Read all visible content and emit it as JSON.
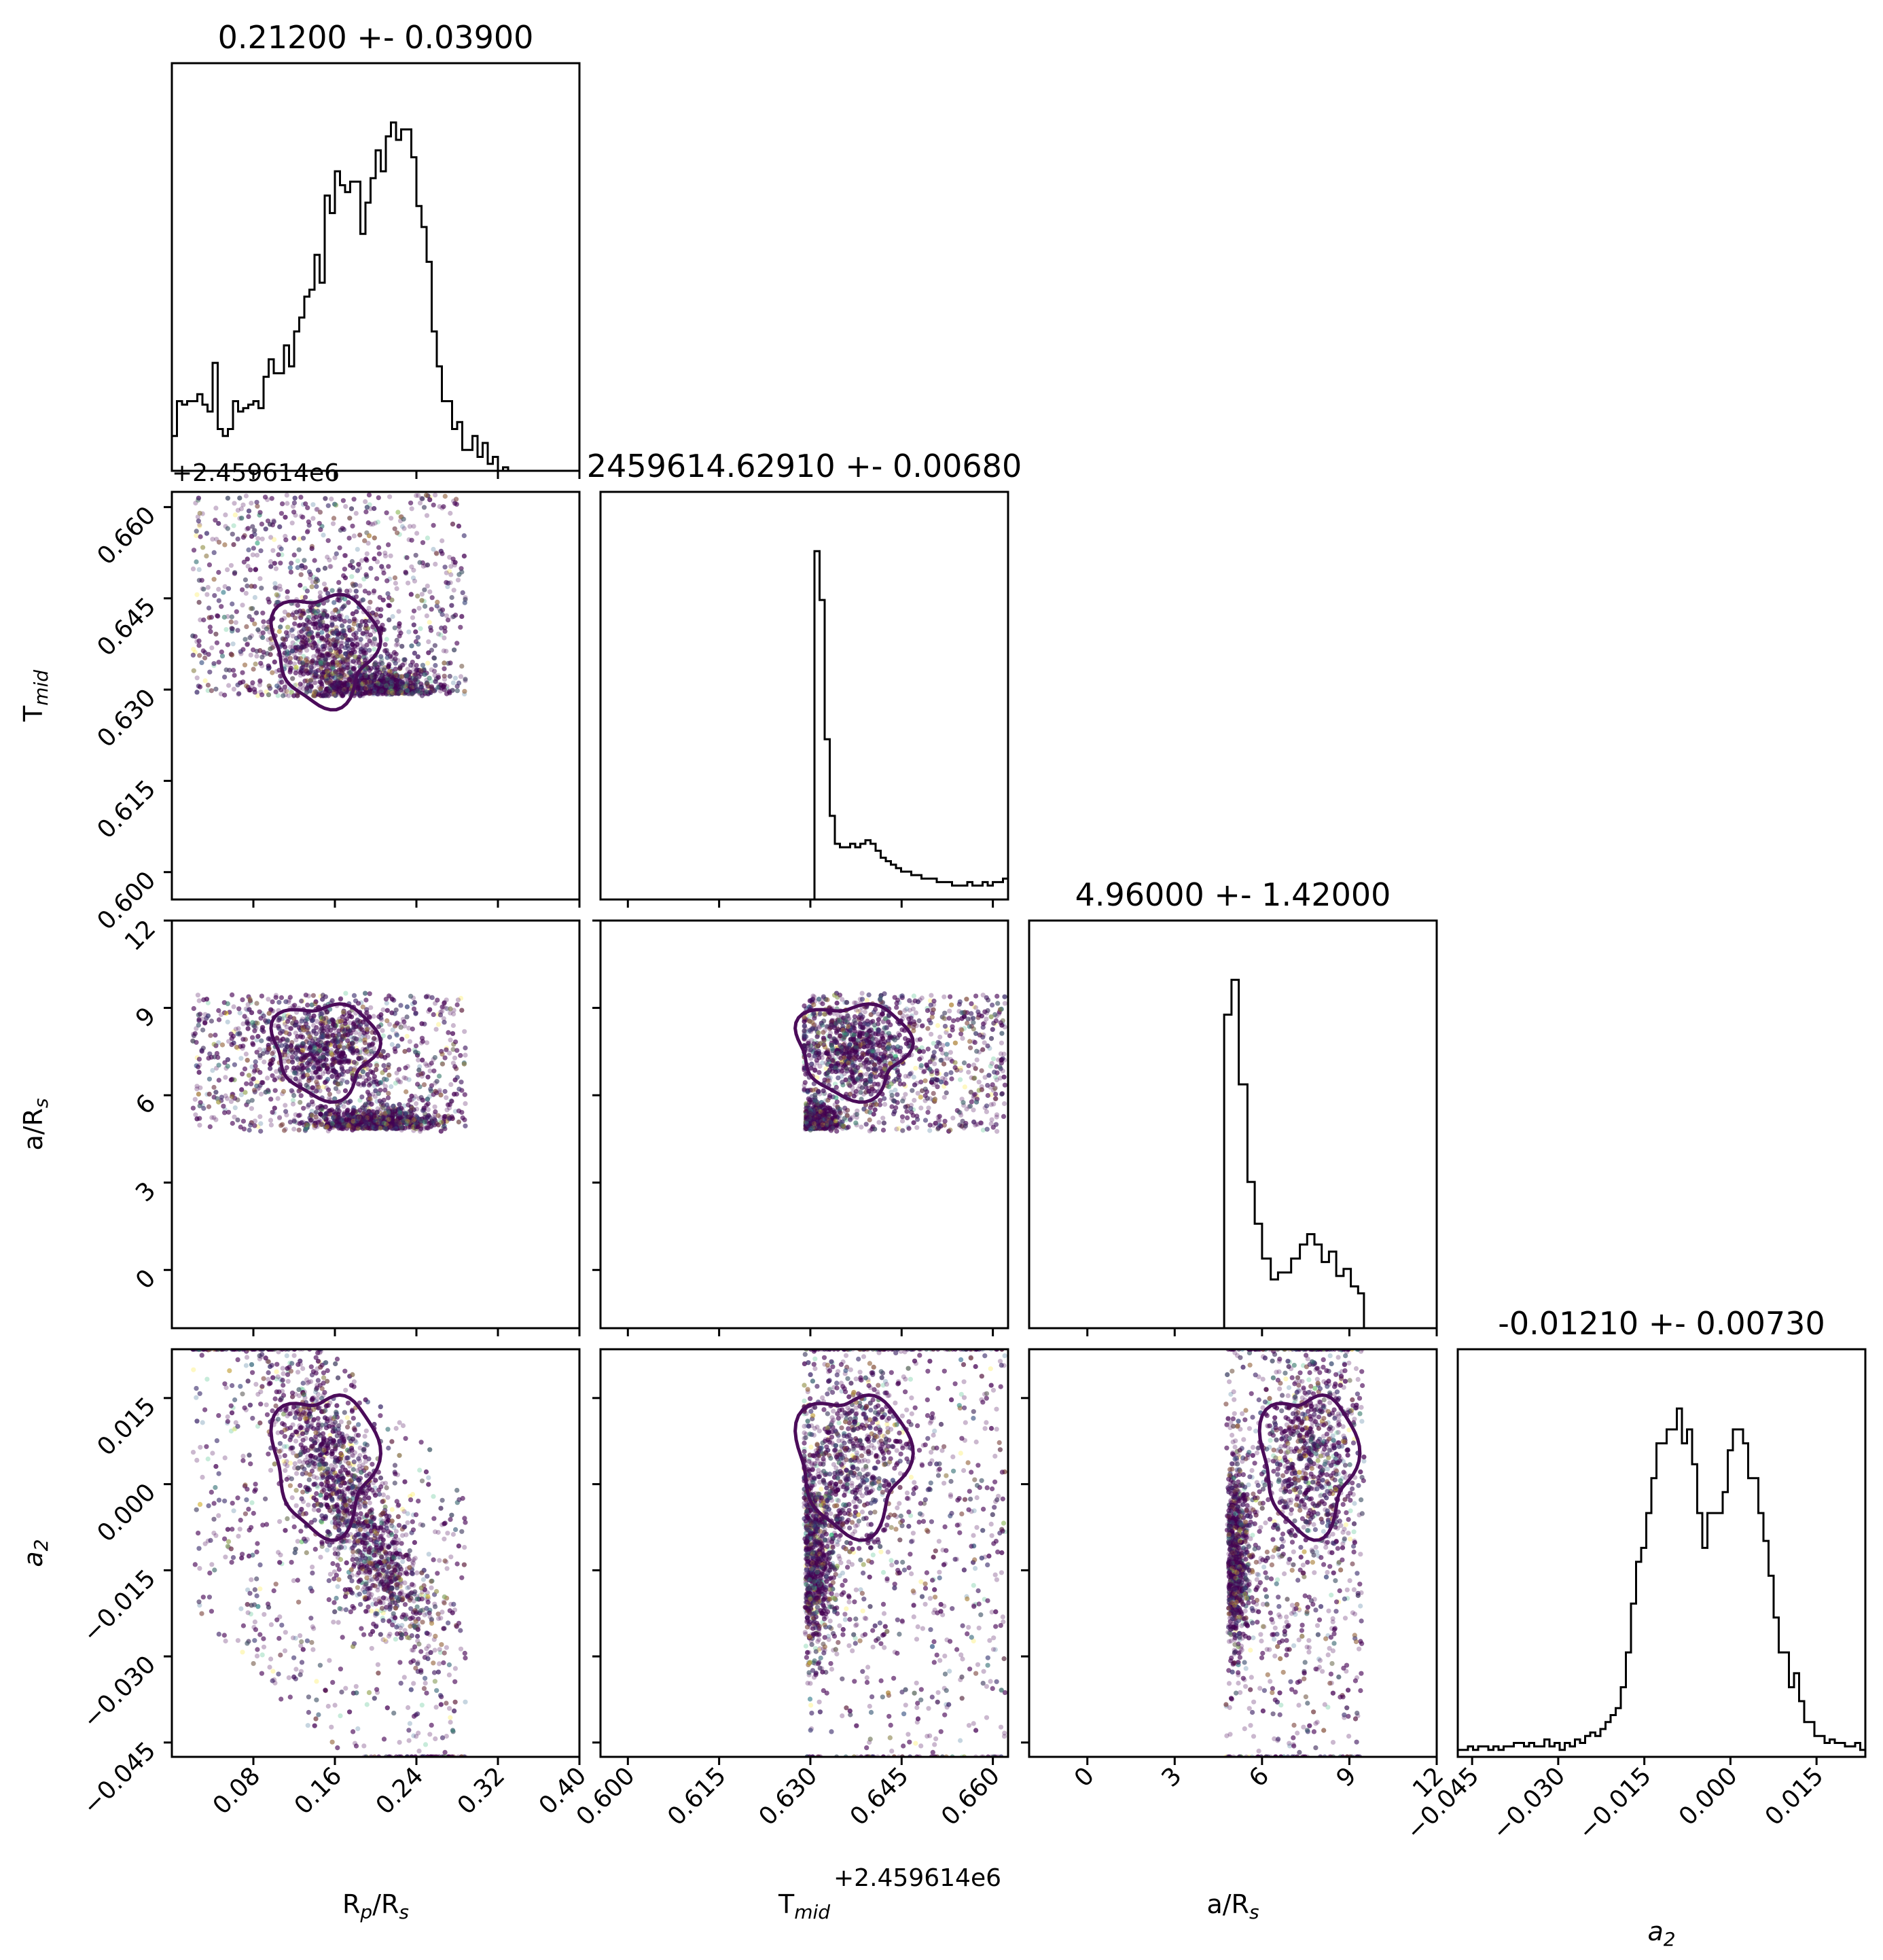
{
  "chart_data": {
    "type": "corner",
    "parameters": [
      "R_p/R_s",
      "T_mid",
      "a/R_s",
      "a_2"
    ],
    "axis_labels": [
      {
        "main": "R",
        "sub": "p",
        "rest": "/R",
        "sub2": "s"
      },
      {
        "main": "T",
        "sub": "mid",
        "rest": "",
        "sub2": ""
      },
      {
        "main": "a/R",
        "sub": "s",
        "rest": "",
        "sub2": ""
      },
      {
        "main": "a",
        "sub": "2",
        "rest": "",
        "sub2": "",
        "italic": true
      }
    ],
    "titles": [
      "0.21200 +- 0.03900",
      "2459614.62910 +- 0.00680",
      "4.96000 +- 1.42000",
      "-0.01210 +- 0.00730"
    ],
    "offset_text": "+2.459614e6",
    "ranges": [
      [
        0.0,
        0.4
      ],
      [
        0.5955,
        0.6625
      ],
      [
        -2.0,
        12.0
      ],
      [
        -0.0475,
        0.0235
      ]
    ],
    "ticks": [
      {
        "values": [
          0.08,
          0.16,
          0.24,
          0.32,
          0.4
        ],
        "labels": [
          "0.08",
          "0.16",
          "0.24",
          "0.32",
          "0.40"
        ]
      },
      {
        "values": [
          0.6,
          0.615,
          0.63,
          0.645,
          0.66
        ],
        "labels": [
          "0.600",
          "0.615",
          "0.630",
          "0.645",
          "0.660"
        ]
      },
      {
        "values": [
          0,
          3,
          6,
          9,
          12
        ],
        "labels": [
          "0",
          "3",
          "6",
          "9",
          "12"
        ]
      },
      {
        "values": [
          -0.045,
          -0.03,
          -0.015,
          0.0,
          0.015
        ],
        "labels": [
          "−0.045",
          "−0.030",
          "−0.015",
          "0.000",
          "0.015"
        ]
      }
    ],
    "histograms": [
      {
        "range": [
          0.0,
          0.4
        ],
        "counts": [
          10,
          20,
          19,
          20,
          20,
          22,
          19,
          17,
          31,
          12,
          10,
          12,
          20,
          17,
          18,
          19,
          20,
          18,
          27,
          32,
          28,
          28,
          36,
          30,
          40,
          44,
          50,
          52,
          62,
          54,
          79,
          74,
          86,
          82,
          80,
          83,
          83,
          68,
          77,
          84,
          92,
          86,
          96,
          100,
          95,
          98,
          98,
          90,
          76,
          70,
          60,
          40,
          30,
          20,
          20,
          12,
          14,
          6,
          6,
          10,
          4,
          8,
          2,
          4,
          0,
          1,
          0,
          0,
          0,
          0,
          0,
          0,
          0,
          0,
          0,
          0,
          0,
          0,
          0,
          0
        ],
        "ymax": 110
      },
      {
        "range": [
          0.5955,
          0.6625
        ],
        "counts": [
          0,
          0,
          0,
          0,
          0,
          0,
          0,
          0,
          0,
          0,
          0,
          0,
          0,
          0,
          0,
          0,
          0,
          0,
          0,
          0,
          0,
          0,
          0,
          0,
          0,
          0,
          0,
          0,
          0,
          0,
          0,
          0,
          0,
          0,
          0,
          0,
          0,
          0,
          0,
          0,
          0,
          0,
          100,
          86,
          46,
          24,
          16,
          15,
          15,
          16,
          15,
          16,
          17,
          16,
          14,
          12,
          11,
          10,
          9,
          8,
          8,
          7,
          7,
          6,
          6,
          6,
          5,
          5,
          5,
          4,
          4,
          4,
          5,
          4,
          4,
          5,
          4,
          5,
          5,
          6
        ],
        "ymax": 110
      },
      {
        "range": [
          -2.0,
          12.0
        ],
        "counts": [
          0,
          0,
          0,
          0,
          0,
          0,
          0,
          0,
          0,
          0,
          0,
          0,
          0,
          0,
          0,
          0,
          0,
          0,
          0,
          0,
          0,
          0,
          0,
          0,
          0,
          0,
          0,
          0,
          0,
          0,
          0,
          0,
          0,
          0,
          0,
          0,
          0,
          0,
          0,
          0,
          0,
          0,
          0,
          0,
          0,
          0,
          0,
          0,
          0,
          0,
          0,
          0,
          0,
          0,
          0,
          0,
          0,
          0,
          0,
          0,
          0,
          0,
          0,
          0,
          0,
          0,
          0,
          0,
          0,
          0,
          0,
          0,
          0,
          0,
          0,
          0,
          0,
          0,
          0,
          0
        ],
        "ymax": 110,
        "custom": [
          [
            4.7,
            0
          ],
          [
            4.7,
            90
          ],
          [
            4.95,
            90
          ],
          [
            4.95,
            100
          ],
          [
            5.2,
            100
          ],
          [
            5.2,
            70
          ],
          [
            5.5,
            70
          ],
          [
            5.5,
            42
          ],
          [
            5.75,
            42
          ],
          [
            5.75,
            30
          ],
          [
            6.0,
            30
          ],
          [
            6.0,
            20
          ],
          [
            6.3,
            20
          ],
          [
            6.3,
            14
          ],
          [
            6.55,
            14
          ],
          [
            6.55,
            16
          ],
          [
            7.0,
            16
          ],
          [
            7.0,
            20
          ],
          [
            7.3,
            20
          ],
          [
            7.3,
            24
          ],
          [
            7.55,
            24
          ],
          [
            7.55,
            27
          ],
          [
            7.8,
            27
          ],
          [
            7.8,
            24
          ],
          [
            8.05,
            24
          ],
          [
            8.05,
            19
          ],
          [
            8.3,
            19
          ],
          [
            8.3,
            22
          ],
          [
            8.55,
            22
          ],
          [
            8.55,
            15
          ],
          [
            8.8,
            15
          ],
          [
            8.8,
            17
          ],
          [
            9.05,
            17
          ],
          [
            9.05,
            12
          ],
          [
            9.3,
            12
          ],
          [
            9.3,
            10
          ],
          [
            9.5,
            10
          ],
          [
            9.5,
            0
          ]
        ]
      },
      {
        "range": [
          -0.0475,
          0.0235
        ],
        "counts": [
          2,
          2,
          3,
          2,
          3,
          3,
          2,
          3,
          2,
          3,
          3,
          4,
          4,
          3,
          4,
          3,
          3,
          5,
          3,
          4,
          2,
          4,
          3,
          5,
          4,
          6,
          7,
          6,
          8,
          10,
          12,
          14,
          20,
          30,
          44,
          56,
          60,
          70,
          80,
          90,
          90,
          94,
          94,
          100,
          90,
          94,
          84,
          70,
          60,
          70,
          70,
          70,
          76,
          88,
          94,
          94,
          90,
          80,
          80,
          70,
          62,
          52,
          40,
          30,
          30,
          20,
          24,
          16,
          10,
          10,
          6,
          6,
          4,
          5,
          4,
          4,
          3,
          3,
          4,
          2
        ],
        "ymax": 110
      }
    ],
    "cmap": [
      "#440154",
      "#31688e",
      "#35b779",
      "#fde725"
    ],
    "contour_color": "#4b0c5a"
  }
}
